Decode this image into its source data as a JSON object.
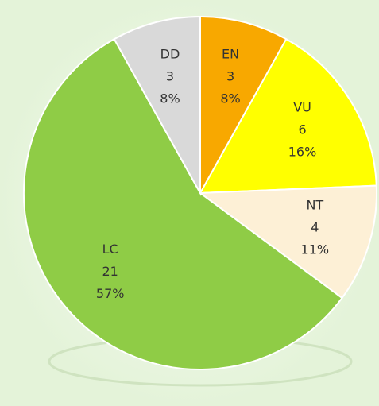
{
  "chart_data": {
    "type": "pie",
    "categories": [
      "EN",
      "VU",
      "NT",
      "LC",
      "DD"
    ],
    "values": [
      3,
      6,
      4,
      21,
      3
    ],
    "percent_labels": [
      "8%",
      "16%",
      "11%",
      "57%",
      "8%"
    ],
    "colors": [
      "#f8a800",
      "#ffff00",
      "#fdf0d6",
      "#8fcc46",
      "#d9d9d9"
    ]
  }
}
